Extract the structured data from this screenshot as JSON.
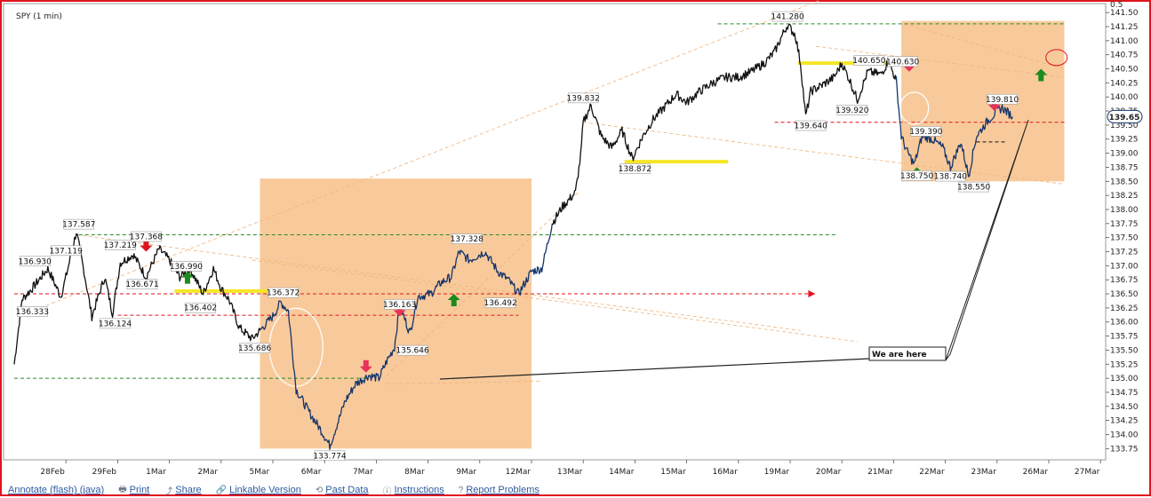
{
  "chart_data": {
    "type": "line",
    "title": "SPY (1 min)",
    "y_ticks": [
      133.75,
      134.0,
      134.25,
      134.5,
      134.75,
      135.0,
      135.25,
      135.5,
      135.75,
      136.0,
      136.25,
      136.5,
      136.75,
      137.0,
      137.25,
      137.5,
      137.75,
      138.0,
      138.25,
      138.5,
      138.75,
      139.0,
      139.25,
      139.5,
      139.75,
      140.0,
      140.25,
      140.5,
      140.75,
      141.0,
      141.25,
      141.5
    ],
    "y_tick_extra": "0.5",
    "ylim": [
      133.55,
      141.66
    ],
    "x_ticks": [
      "28Feb",
      "29Feb",
      "1Mar",
      "2Mar",
      "5Mar",
      "6Mar",
      "7Mar",
      "8Mar",
      "9Mar",
      "12Mar",
      "13Mar",
      "14Mar",
      "15Mar",
      "16Mar",
      "19Mar",
      "20Mar",
      "21Mar",
      "22Mar",
      "23Mar",
      "26Mar",
      "27Mar"
    ],
    "last_price": "139.65",
    "series": [
      {
        "color": "#111111",
        "points": [
          {
            "day": 0.0,
            "v": 135.25
          },
          {
            "day": 0.15,
            "v": 136.4
          },
          {
            "day": 0.35,
            "v": 136.6
          },
          {
            "day": 0.65,
            "v": 136.95
          },
          {
            "day": 0.9,
            "v": 136.45
          },
          {
            "day": 1.0,
            "v": 136.8
          },
          {
            "day": 1.2,
            "v": 137.6
          },
          {
            "day": 1.35,
            "v": 136.9
          },
          {
            "day": 1.5,
            "v": 136.1
          },
          {
            "day": 1.75,
            "v": 136.8
          },
          {
            "day": 1.9,
            "v": 136.15
          },
          {
            "day": 2.05,
            "v": 137.05
          },
          {
            "day": 2.3,
            "v": 137.2
          },
          {
            "day": 2.55,
            "v": 136.8
          },
          {
            "day": 2.8,
            "v": 137.3
          },
          {
            "day": 3.0,
            "v": 137.1
          },
          {
            "day": 3.2,
            "v": 136.8
          },
          {
            "day": 3.4,
            "v": 136.95
          },
          {
            "day": 3.65,
            "v": 136.5
          },
          {
            "day": 3.85,
            "v": 136.95
          },
          {
            "day": 4.0,
            "v": 136.6
          },
          {
            "day": 4.15,
            "v": 136.4
          },
          {
            "day": 4.35,
            "v": 135.9
          },
          {
            "day": 4.6,
            "v": 135.7
          },
          {
            "day": 4.75,
            "v": 135.85
          }
        ]
      },
      {
        "color": "#15356b",
        "points": [
          {
            "day": 4.75,
            "v": 135.85
          },
          {
            "day": 5.0,
            "v": 136.1
          },
          {
            "day": 5.15,
            "v": 136.35
          },
          {
            "day": 5.3,
            "v": 136.2
          },
          {
            "day": 5.45,
            "v": 134.8
          },
          {
            "day": 5.7,
            "v": 134.4
          },
          {
            "day": 5.95,
            "v": 134.05
          },
          {
            "day": 6.1,
            "v": 133.8
          },
          {
            "day": 6.25,
            "v": 134.2
          },
          {
            "day": 6.4,
            "v": 134.6
          },
          {
            "day": 6.6,
            "v": 134.9
          },
          {
            "day": 6.85,
            "v": 135.05
          },
          {
            "day": 7.05,
            "v": 135.0
          },
          {
            "day": 7.2,
            "v": 135.3
          },
          {
            "day": 7.35,
            "v": 135.55
          },
          {
            "day": 7.45,
            "v": 136.3
          },
          {
            "day": 7.65,
            "v": 135.8
          },
          {
            "day": 7.8,
            "v": 136.45
          },
          {
            "day": 8.05,
            "v": 136.5
          },
          {
            "day": 8.25,
            "v": 136.7
          },
          {
            "day": 8.45,
            "v": 136.8
          },
          {
            "day": 8.6,
            "v": 137.25
          },
          {
            "day": 8.8,
            "v": 137.1
          },
          {
            "day": 9.1,
            "v": 137.25
          },
          {
            "day": 9.35,
            "v": 136.9
          },
          {
            "day": 9.55,
            "v": 136.75
          },
          {
            "day": 9.75,
            "v": 136.5
          },
          {
            "day": 10.0,
            "v": 136.9
          },
          {
            "day": 10.2,
            "v": 136.95
          },
          {
            "day": 10.4,
            "v": 137.75
          }
        ]
      },
      {
        "color": "#111111",
        "points": [
          {
            "day": 10.4,
            "v": 137.75
          },
          {
            "day": 10.6,
            "v": 138.05
          },
          {
            "day": 10.85,
            "v": 138.3
          },
          {
            "day": 10.95,
            "v": 138.95
          },
          {
            "day": 11.0,
            "v": 139.55
          },
          {
            "day": 11.15,
            "v": 139.85
          },
          {
            "day": 11.35,
            "v": 139.3
          },
          {
            "day": 11.55,
            "v": 139.1
          },
          {
            "day": 11.75,
            "v": 139.4
          },
          {
            "day": 11.95,
            "v": 138.9
          },
          {
            "day": 12.15,
            "v": 139.3
          },
          {
            "day": 12.35,
            "v": 139.6
          },
          {
            "day": 12.55,
            "v": 139.8
          },
          {
            "day": 12.8,
            "v": 140.05
          },
          {
            "day": 13.0,
            "v": 139.9
          },
          {
            "day": 13.25,
            "v": 140.1
          },
          {
            "day": 13.5,
            "v": 140.25
          },
          {
            "day": 13.75,
            "v": 140.35
          },
          {
            "day": 14.0,
            "v": 140.35
          },
          {
            "day": 14.25,
            "v": 140.45
          },
          {
            "day": 14.5,
            "v": 140.6
          },
          {
            "day": 14.7,
            "v": 140.8
          },
          {
            "day": 14.85,
            "v": 141.1
          },
          {
            "day": 14.95,
            "v": 141.28
          },
          {
            "day": 15.1,
            "v": 141.1
          },
          {
            "day": 15.2,
            "v": 140.6
          },
          {
            "day": 15.3,
            "v": 139.65
          },
          {
            "day": 15.4,
            "v": 140.1
          },
          {
            "day": 15.6,
            "v": 140.2
          },
          {
            "day": 15.85,
            "v": 140.35
          },
          {
            "day": 16.0,
            "v": 140.6
          },
          {
            "day": 16.15,
            "v": 140.3
          },
          {
            "day": 16.3,
            "v": 139.95
          },
          {
            "day": 16.5,
            "v": 140.45
          },
          {
            "day": 16.75,
            "v": 140.4
          },
          {
            "day": 16.9,
            "v": 140.63
          },
          {
            "day": 17.05,
            "v": 140.3
          }
        ]
      },
      {
        "color": "#15356b",
        "points": [
          {
            "day": 17.05,
            "v": 140.3
          },
          {
            "day": 17.15,
            "v": 139.3
          },
          {
            "day": 17.25,
            "v": 139.05
          },
          {
            "day": 17.4,
            "v": 138.8
          },
          {
            "day": 17.55,
            "v": 139.3
          },
          {
            "day": 17.75,
            "v": 139.25
          },
          {
            "day": 17.95,
            "v": 139.1
          },
          {
            "day": 18.1,
            "v": 138.75
          },
          {
            "day": 18.3,
            "v": 139.2
          },
          {
            "day": 18.45,
            "v": 138.6
          },
          {
            "day": 18.6,
            "v": 139.3
          },
          {
            "day": 18.8,
            "v": 139.55
          },
          {
            "day": 19.0,
            "v": 139.75
          },
          {
            "day": 19.1,
            "v": 139.81
          },
          {
            "day": 19.3,
            "v": 139.65
          }
        ]
      }
    ],
    "annotations": {
      "price_labels": [
        {
          "day": 0.35,
          "v": 136.333,
          "text": "136.333",
          "pos": "below"
        },
        {
          "day": 0.4,
          "v": 136.93,
          "text": "136.930",
          "pos": "above"
        },
        {
          "day": 1.0,
          "v": 137.119,
          "text": "137.119",
          "pos": "above"
        },
        {
          "day": 1.25,
          "v": 137.587,
          "text": "137.587",
          "pos": "above"
        },
        {
          "day": 2.05,
          "v": 137.219,
          "text": "137.219",
          "pos": "above"
        },
        {
          "day": 2.55,
          "v": 137.368,
          "text": "137.368",
          "pos": "above"
        },
        {
          "day": 1.95,
          "v": 136.124,
          "text": "136.124",
          "pos": "below"
        },
        {
          "day": 2.8,
          "v": 136.671,
          "text": "136.671",
          "pos": "left"
        },
        {
          "day": 3.65,
          "v": 136.99,
          "text": "136.990",
          "pos": "left"
        },
        {
          "day": 3.6,
          "v": 136.402,
          "text": "136.402",
          "pos": "below"
        },
        {
          "day": 4.65,
          "v": 135.686,
          "text": "135.686",
          "pos": "below"
        },
        {
          "day": 5.2,
          "v": 136.372,
          "text": "136.372",
          "pos": "above"
        },
        {
          "day": 7.45,
          "v": 136.163,
          "text": "136.163",
          "pos": "above"
        },
        {
          "day": 6.1,
          "v": 133.774,
          "text": "133.774",
          "pos": "below"
        },
        {
          "day": 7.7,
          "v": 135.646,
          "text": "135.646",
          "pos": "below"
        },
        {
          "day": 8.75,
          "v": 137.328,
          "text": "137.328",
          "pos": "above"
        },
        {
          "day": 9.4,
          "v": 136.492,
          "text": "136.492",
          "pos": "below"
        },
        {
          "day": 11.0,
          "v": 139.832,
          "text": "139.832",
          "pos": "above"
        },
        {
          "day": 12.0,
          "v": 138.872,
          "text": "138.872",
          "pos": "below"
        },
        {
          "day": 14.95,
          "v": 141.28,
          "text": "141.280",
          "pos": "above"
        },
        {
          "day": 15.4,
          "v": 139.64,
          "text": "139.640",
          "pos": "below"
        },
        {
          "day": 16.2,
          "v": 139.92,
          "text": "139.920",
          "pos": "below"
        },
        {
          "day": 16.2,
          "v": 140.65,
          "text": "140.650",
          "pos": "right"
        },
        {
          "day": 16.85,
          "v": 140.63,
          "text": "140.630",
          "pos": "right"
        },
        {
          "day": 17.3,
          "v": 139.39,
          "text": "139.390",
          "pos": "right"
        },
        {
          "day": 17.45,
          "v": 138.75,
          "text": "138.750",
          "pos": "below"
        },
        {
          "day": 18.1,
          "v": 138.74,
          "text": "138.740",
          "pos": "below"
        },
        {
          "day": 18.55,
          "v": 138.55,
          "text": "138.550",
          "pos": "below"
        },
        {
          "day": 19.1,
          "v": 139.81,
          "text": "139.810",
          "pos": "above"
        }
      ],
      "callout_text": "We are here",
      "shaded_zones": [
        {
          "day_from": 4.75,
          "day_to": 10.0,
          "v_from": 133.75,
          "v_to": 138.55
        },
        {
          "day_from": 17.15,
          "day_to": 20.3,
          "v_from": 138.5,
          "v_to": 141.35
        }
      ],
      "support_resistance": [
        {
          "v": 136.5,
          "day_from": 0.0,
          "day_to": 15.35,
          "color": "#e0141e",
          "arrow": true
        },
        {
          "v": 136.12,
          "day_from": 2.0,
          "day_to": 9.75,
          "color": "#e0141e"
        },
        {
          "v": 137.55,
          "day_from": 1.25,
          "day_to": 15.9,
          "color": "#2a8a2a"
        },
        {
          "v": 141.3,
          "day_from": 13.6,
          "day_to": 20.3,
          "color": "#2a8a2a"
        },
        {
          "v": 135.0,
          "day_from": 0.0,
          "day_to": 6.8,
          "color": "#2a8a2a"
        },
        {
          "v": 139.55,
          "day_from": 14.7,
          "day_to": 20.3,
          "color": "#e0141e"
        },
        {
          "v": 139.2,
          "day_from": 18.6,
          "day_to": 19.2,
          "color": "#111111"
        }
      ],
      "highlight_bars": [
        {
          "v": 136.55,
          "day_from": 3.1,
          "day_to": 5.0
        },
        {
          "v": 138.85,
          "day_from": 11.8,
          "day_to": 13.8
        },
        {
          "v": 140.6,
          "day_from": 15.15,
          "day_to": 17.0
        }
      ],
      "arrows": [
        {
          "day": 2.55,
          "v": 137.25,
          "dir": "down",
          "color": "#e0141e"
        },
        {
          "day": 3.35,
          "v": 136.9,
          "dir": "up",
          "color": "#1e8a1e"
        },
        {
          "day": 6.8,
          "v": 135.1,
          "dir": "down",
          "color": "#e8325a"
        },
        {
          "day": 7.45,
          "v": 136.1,
          "dir": "down",
          "color": "#e8325a"
        },
        {
          "day": 8.5,
          "v": 136.5,
          "dir": "up",
          "color": "#1e8a1e"
        },
        {
          "day": 17.3,
          "v": 140.45,
          "dir": "down",
          "color": "#e8325a"
        },
        {
          "day": 17.45,
          "v": 138.75,
          "dir": "up",
          "color": "#1e8a1e"
        },
        {
          "day": 18.95,
          "v": 139.75,
          "dir": "down",
          "color": "#e8325a"
        },
        {
          "day": 19.85,
          "v": 140.5,
          "dir": "up",
          "color": "#1e8a1e"
        }
      ]
    }
  },
  "footer": {
    "links": [
      {
        "icon": "",
        "label": "Annotate (flash) (java)"
      },
      {
        "icon": "🖶",
        "label": "Print"
      },
      {
        "icon": "⤴",
        "label": "Share"
      },
      {
        "icon": "🔗",
        "label": "Linkable Version"
      },
      {
        "icon": "⟲",
        "label": "Past Data"
      },
      {
        "icon": "ⓘ",
        "label": "Instructions"
      },
      {
        "icon": "?",
        "label": "Report Problems"
      }
    ]
  }
}
